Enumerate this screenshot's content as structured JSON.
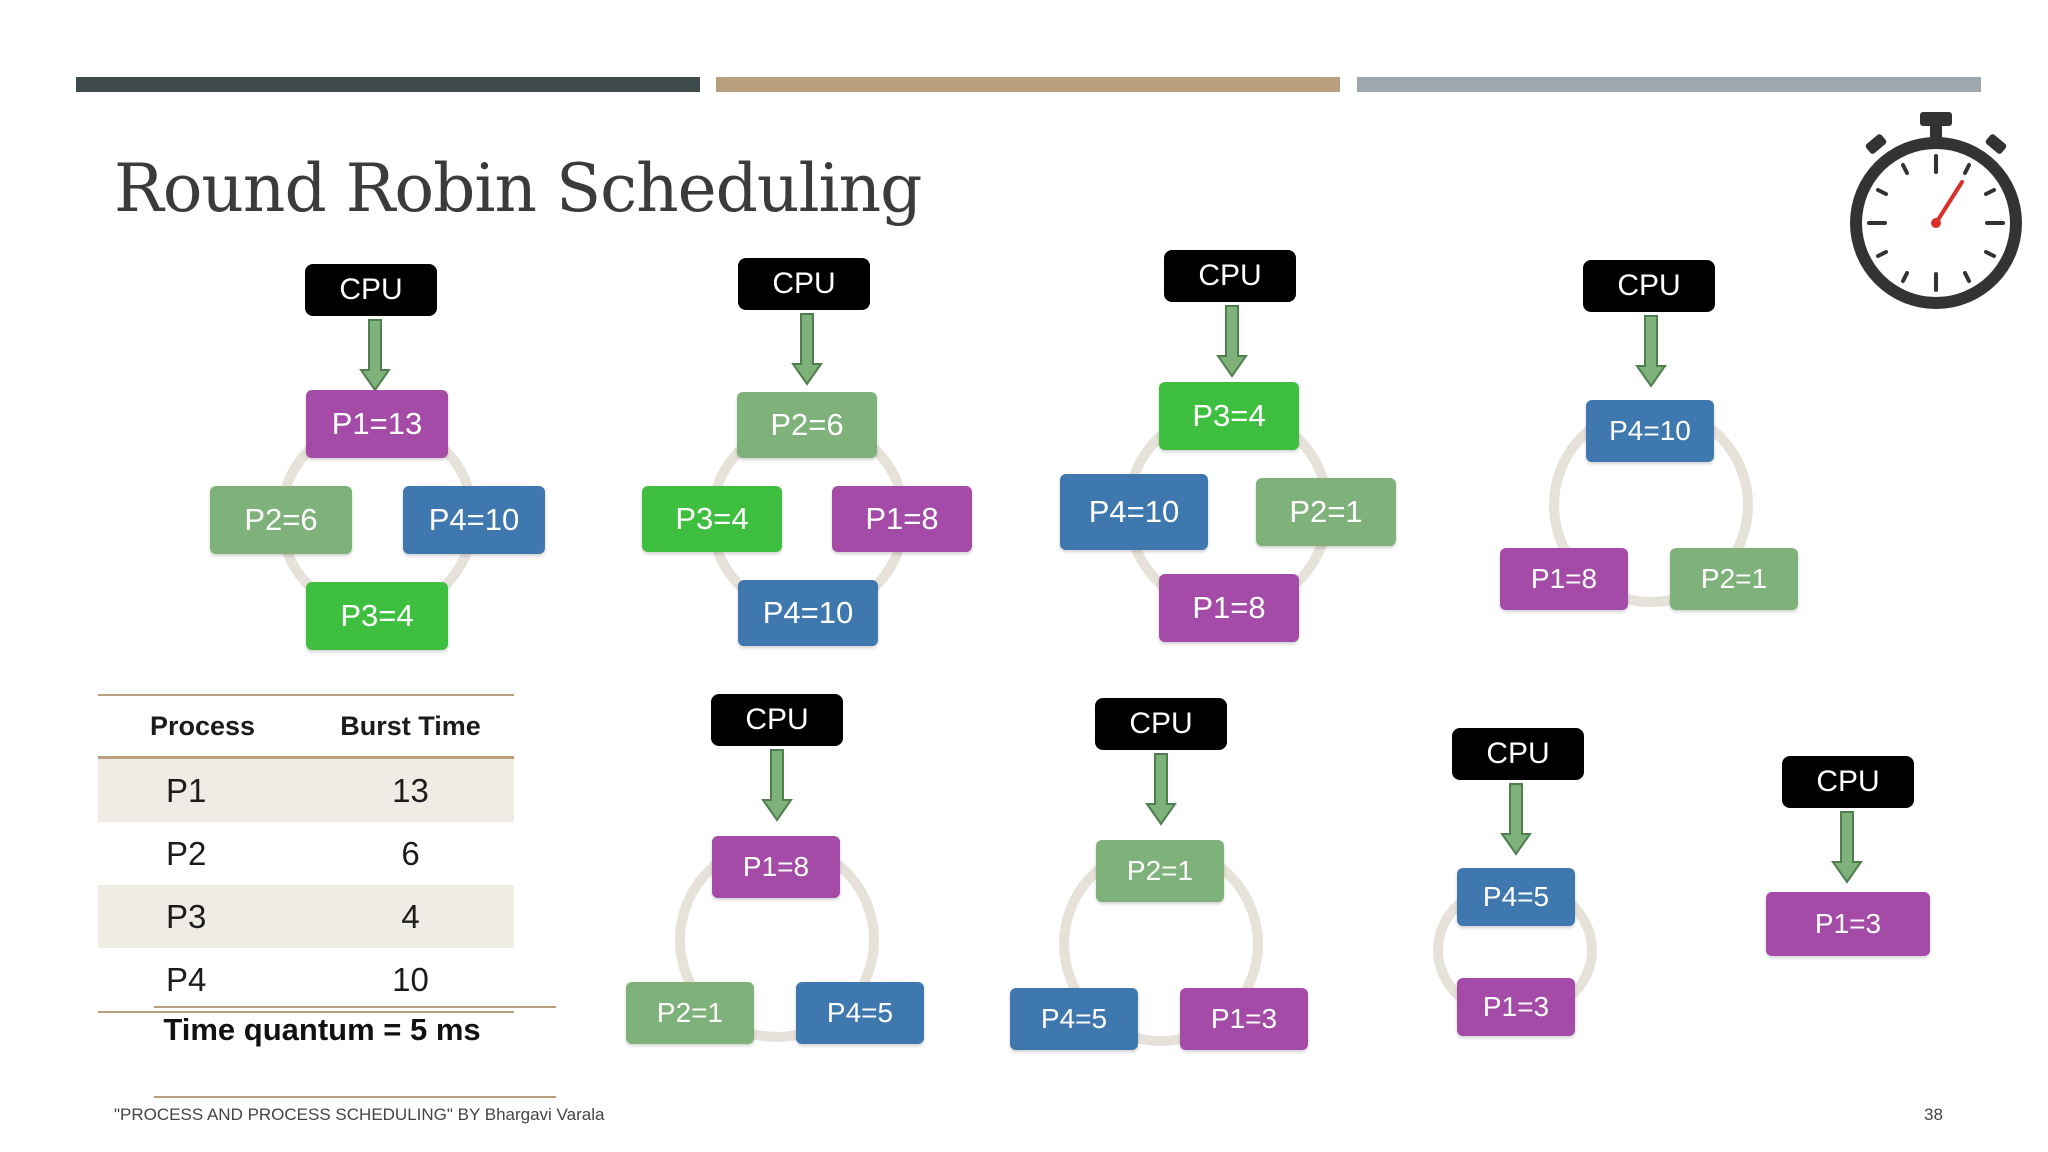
{
  "slide": {
    "title": "Round Robin Scheduling",
    "footer": "\"PROCESS AND PROCESS SCHEDULING\" BY Bhargavi Varala",
    "page_number": "38",
    "accent_colors": [
      "#3e4a4c",
      "#b8a07c",
      "#9ea7ad"
    ]
  },
  "process_colors": {
    "P1": "#a34ba7",
    "P2": "#7fb27a",
    "P3": "#3fbf3f",
    "P4": "#3f78ae"
  },
  "table": {
    "headers": [
      "Process",
      "Burst Time"
    ],
    "rows": [
      {
        "process": "P1",
        "burst": "13"
      },
      {
        "process": "P2",
        "burst": "6"
      },
      {
        "process": "P3",
        "burst": "4"
      },
      {
        "process": "P4",
        "burst": "10"
      }
    ],
    "quantum": "Time quantum = 5 ms"
  },
  "diagrams": [
    {
      "cpu": "CPU",
      "queue": [
        {
          "label": "P1=13",
          "process": "P1"
        },
        {
          "label": "P4=10",
          "process": "P4"
        },
        {
          "label": "P3=4",
          "process": "P3"
        },
        {
          "label": "P2=6",
          "process": "P2"
        }
      ]
    },
    {
      "cpu": "CPU",
      "queue": [
        {
          "label": "P2=6",
          "process": "P2"
        },
        {
          "label": "P1=8",
          "process": "P1"
        },
        {
          "label": "P4=10",
          "process": "P4"
        },
        {
          "label": "P3=4",
          "process": "P3"
        }
      ]
    },
    {
      "cpu": "CPU",
      "queue": [
        {
          "label": "P3=4",
          "process": "P3"
        },
        {
          "label": "P2=1",
          "process": "P2"
        },
        {
          "label": "P1=8",
          "process": "P1"
        },
        {
          "label": "P4=10",
          "process": "P4"
        }
      ]
    },
    {
      "cpu": "CPU",
      "queue": [
        {
          "label": "P4=10",
          "process": "P4"
        },
        {
          "label": "P2=1",
          "process": "P2"
        },
        {
          "label": "P1=8",
          "process": "P1"
        }
      ]
    },
    {
      "cpu": "CPU",
      "queue": [
        {
          "label": "P1=8",
          "process": "P1"
        },
        {
          "label": "P4=5",
          "process": "P4"
        },
        {
          "label": "P2=1",
          "process": "P2"
        }
      ]
    },
    {
      "cpu": "CPU",
      "queue": [
        {
          "label": "P2=1",
          "process": "P2"
        },
        {
          "label": "P1=3",
          "process": "P1"
        },
        {
          "label": "P4=5",
          "process": "P4"
        }
      ]
    },
    {
      "cpu": "CPU",
      "queue": [
        {
          "label": "P4=5",
          "process": "P4"
        },
        {
          "label": "P1=3",
          "process": "P1"
        }
      ]
    },
    {
      "cpu": "CPU",
      "queue": [
        {
          "label": "P1=3",
          "process": "P1"
        }
      ]
    }
  ]
}
